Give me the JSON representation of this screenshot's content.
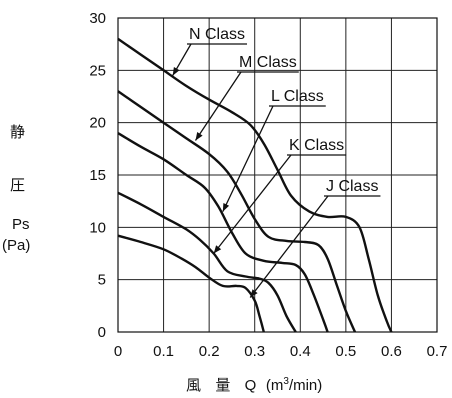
{
  "chart_data": {
    "type": "line",
    "ylabel_lines": [
      "静",
      "圧",
      "Ps",
      "(Pa)"
    ],
    "xlabel": {
      "chars": [
        "風",
        "量",
        "Q"
      ],
      "unit_pre": "(m",
      "unit_sup": "3",
      "unit_post": "/min)"
    },
    "xlim": [
      0,
      0.7
    ],
    "ylim": [
      0,
      30
    ],
    "x_ticks": [
      "0",
      "0.1",
      "0.2",
      "0.3",
      "0.4",
      "0.5",
      "0.6",
      "0.7"
    ],
    "y_ticks": [
      "0",
      "5",
      "10",
      "15",
      "20",
      "25",
      "30"
    ],
    "grid": true,
    "series": [
      {
        "name": "N Class",
        "x": [
          0,
          0.05,
          0.1,
          0.15,
          0.2,
          0.25,
          0.29,
          0.32,
          0.35,
          0.38,
          0.42,
          0.46,
          0.5,
          0.53,
          0.55,
          0.57,
          0.59,
          0.6
        ],
        "y": [
          28,
          26.5,
          25,
          23.5,
          22.2,
          21,
          19.8,
          18,
          15.5,
          13,
          11.5,
          11,
          11,
          10,
          7,
          3.5,
          1,
          0
        ]
      },
      {
        "name": "M Class",
        "x": [
          0,
          0.05,
          0.1,
          0.15,
          0.2,
          0.24,
          0.27,
          0.3,
          0.33,
          0.37,
          0.41,
          0.44,
          0.46,
          0.48,
          0.5,
          0.52
        ],
        "y": [
          23,
          21.5,
          20,
          18.5,
          17,
          15.3,
          13.2,
          10.8,
          9.1,
          8.7,
          8.6,
          8.3,
          7,
          4.5,
          2,
          0
        ]
      },
      {
        "name": "L Class",
        "x": [
          0,
          0.05,
          0.1,
          0.15,
          0.19,
          0.22,
          0.25,
          0.28,
          0.32,
          0.36,
          0.39,
          0.41,
          0.43,
          0.45,
          0.46
        ],
        "y": [
          19,
          17.7,
          16.5,
          15,
          13.8,
          12,
          9.5,
          7.5,
          6.8,
          6.6,
          6.4,
          5.5,
          3.5,
          1.2,
          0
        ]
      },
      {
        "name": "K Class",
        "x": [
          0,
          0.05,
          0.1,
          0.15,
          0.18,
          0.21,
          0.24,
          0.28,
          0.31,
          0.33,
          0.35,
          0.37,
          0.39
        ],
        "y": [
          13.3,
          12.2,
          11,
          9.8,
          8.8,
          7.5,
          5.8,
          5.3,
          5.1,
          4.7,
          3.5,
          1.5,
          0
        ]
      },
      {
        "name": "J Class",
        "x": [
          0,
          0.05,
          0.1,
          0.14,
          0.17,
          0.2,
          0.23,
          0.26,
          0.28,
          0.3,
          0.31,
          0.32
        ],
        "y": [
          9.2,
          8.6,
          7.9,
          7.0,
          6.2,
          5.2,
          4.4,
          4.4,
          4.2,
          3.0,
          1.6,
          0
        ]
      }
    ],
    "annotations": [
      {
        "series": "N Class",
        "text": "N Class",
        "point": [
          0.12,
          24.5
        ]
      },
      {
        "series": "M Class",
        "text": "M Class",
        "point": [
          0.17,
          18.3
        ]
      },
      {
        "series": "L Class",
        "text": "L Class",
        "point": [
          0.23,
          11.5
        ]
      },
      {
        "series": "K Class",
        "text": "K Class",
        "point": [
          0.21,
          7.5
        ]
      },
      {
        "series": "J Class",
        "text": "J Class",
        "point": [
          0.29,
          3.3
        ]
      }
    ]
  }
}
